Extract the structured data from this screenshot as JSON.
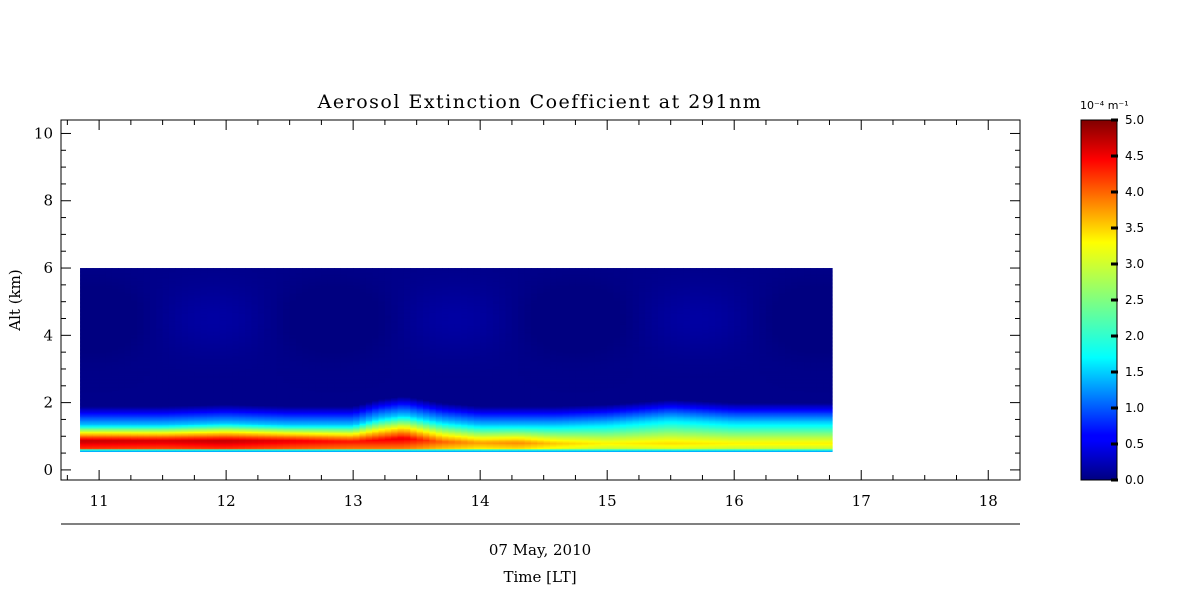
{
  "chart_data": {
    "type": "heatmap",
    "title": "Aerosol Extinction Coefficient at 291nm",
    "ylabel": "Alt (km)",
    "xlabel_date": "07 May, 2010",
    "xlabel": "Time [LT]",
    "xlim": [
      10.7,
      18.25
    ],
    "ylim": [
      -0.3,
      10.4
    ],
    "x_ticks": [
      "11",
      "12",
      "13",
      "14",
      "15",
      "16",
      "17",
      "18"
    ],
    "y_ticks": [
      "0",
      "2",
      "4",
      "6",
      "8",
      "10"
    ],
    "data_extent": {
      "x": [
        10.85,
        16.77
      ],
      "y": [
        0.55,
        6.0
      ]
    },
    "colorbar": {
      "unit_text": "10⁻⁴ m⁻¹",
      "range": [
        0.0,
        5.0
      ],
      "ticks": [
        "0.0",
        "0.5",
        "1.0",
        "1.5",
        "2.0",
        "2.5",
        "3.0",
        "3.5",
        "4.0",
        "4.5",
        "5.0"
      ]
    },
    "layer_profile": {
      "time": [
        10.85,
        11.5,
        12.0,
        12.5,
        13.0,
        13.2,
        13.4,
        13.7,
        14.0,
        14.3,
        14.6,
        15.0,
        15.5,
        16.0,
        16.77
      ],
      "peak_extinction": [
        4.7,
        4.6,
        4.7,
        4.5,
        4.3,
        4.4,
        4.5,
        3.9,
        3.6,
        3.7,
        3.4,
        3.2,
        3.3,
        3.2,
        3.2
      ],
      "peak_altitude_km": [
        0.88,
        0.88,
        0.88,
        0.88,
        0.86,
        0.9,
        0.95,
        0.85,
        0.82,
        0.82,
        0.8,
        0.8,
        0.8,
        0.8,
        0.8
      ],
      "layer_top_km": [
        1.35,
        1.35,
        1.4,
        1.35,
        1.35,
        1.55,
        1.65,
        1.45,
        1.35,
        1.35,
        1.35,
        1.4,
        1.55,
        1.45,
        1.45
      ]
    }
  }
}
